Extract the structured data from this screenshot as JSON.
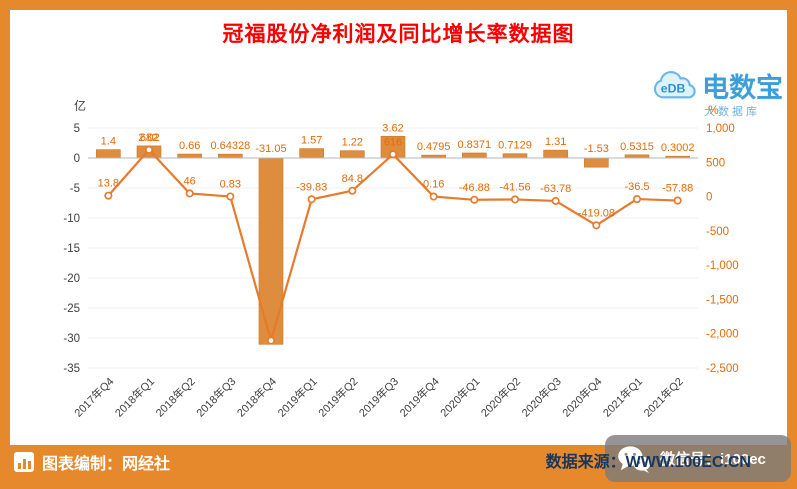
{
  "title": "冠福股份净利润及同比增长率数据图",
  "watermark": {
    "logo": "eDB",
    "name": "电数宝",
    "subtitle": "大数据库"
  },
  "footer": {
    "credit": "图表编制：网经社",
    "source": "数据来源：WWW.100EC.CN"
  },
  "wechat": {
    "label": "微信号：i100ec"
  },
  "colors": {
    "frame": "#E6882C",
    "title": "#F80000",
    "bar": "#DE8C3E",
    "bar_border": "#C9772A",
    "line": "#E87A2C",
    "data_label": "#E26B0A",
    "right_axis_text": "#E26B0A",
    "axis_text": "#3F3F3F",
    "source_text": "#17375E",
    "watermark_blue": "#2E96D5"
  },
  "chart_data": {
    "type": "bar+line combo",
    "categories": [
      "2017年Q4",
      "2018年Q1",
      "2018年Q2",
      "2018年Q3",
      "2018年Q4",
      "2019年Q1",
      "2019年Q2",
      "2019年Q3",
      "2019年Q4",
      "2020年Q1",
      "2020年Q2",
      "2020年Q3",
      "2020年Q4",
      "2021年Q1",
      "2021年Q2"
    ],
    "series": [
      {
        "name": "净利润",
        "unit": "亿",
        "type": "bar",
        "axis": "left",
        "values": [
          1.4,
          2.02,
          0.66,
          0.64328,
          -31.05,
          1.57,
          1.22,
          3.62,
          0.4795,
          0.8371,
          0.7129,
          1.31,
          -1.53,
          0.5315,
          0.3002
        ],
        "labels": [
          "1.4",
          "2.02",
          "0.66",
          "0.64328",
          "-31.05",
          "1.57",
          "1.22",
          "3.62",
          "0.4795",
          "0.8371",
          "0.7129",
          "1.31",
          "-1.53",
          "0.5315",
          "0.3002"
        ]
      },
      {
        "name": "同比增长率",
        "unit": "%",
        "type": "line",
        "axis": "right",
        "values": [
          13.8,
          682,
          46,
          0.83,
          -2100,
          -39.83,
          84.8,
          616,
          0.16,
          -46.88,
          -41.56,
          -63.78,
          -419.08,
          -36.5,
          -57.88
        ],
        "labels": [
          "13.8",
          "682",
          "46",
          "0.83",
          "",
          "-39.83",
          "84.8",
          "616",
          "0.16",
          "-46.88",
          "-41.56",
          "-63.78",
          "-419.08",
          "-36.5",
          "-57.88"
        ]
      }
    ],
    "left_axis": {
      "title": "亿",
      "max": 5,
      "min": -35,
      "tick_values": [
        5,
        0,
        -5,
        -10,
        -15,
        -20,
        -25,
        -30,
        -35
      ],
      "tick_labels": [
        "5",
        "0",
        "-5",
        "-10",
        "-15",
        "-20",
        "-25",
        "-30",
        "-35"
      ]
    },
    "right_axis": {
      "title": "%",
      "max": 1000,
      "min": -2500,
      "tick_values": [
        1000,
        500,
        0,
        -500,
        -1000,
        -1500,
        -2000,
        -2500
      ],
      "tick_labels": [
        "1,000",
        "500",
        "0",
        "-500",
        "-1,000",
        "-1,500",
        "-2,000",
        "-2,500"
      ]
    },
    "grid": true,
    "legend": "none"
  }
}
